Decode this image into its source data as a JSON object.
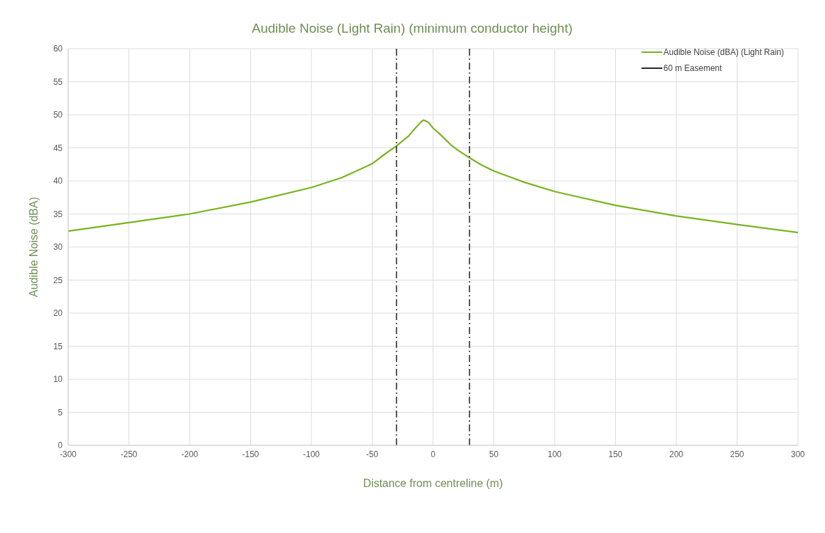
{
  "chart_data": {
    "type": "line",
    "title": "Audible Noise (Light Rain) (minimum conductor height)",
    "xlabel": "Distance from centreline (m)",
    "ylabel": "Audible Noise (dBA)",
    "x": [
      -300,
      -250,
      -200,
      -150,
      -100,
      -75,
      -50,
      -40,
      -30,
      -20,
      -15,
      -12,
      -10,
      -8,
      -5,
      -3,
      0,
      5,
      10,
      15,
      20,
      30,
      40,
      50,
      75,
      100,
      150,
      200,
      250,
      300
    ],
    "series": [
      {
        "name": "Audible Noise (dBA) (Light Rain)",
        "color": "#77b41e",
        "values": [
          32.4,
          33.7,
          35.0,
          36.8,
          39.0,
          40.5,
          42.6,
          44.0,
          45.3,
          46.8,
          47.9,
          48.5,
          48.9,
          49.2,
          49.0,
          48.7,
          48.0,
          47.2,
          46.3,
          45.4,
          44.7,
          43.5,
          42.4,
          41.5,
          39.8,
          38.4,
          36.3,
          34.7,
          33.4,
          32.2
        ]
      }
    ],
    "ref_lines": [
      {
        "axis": "x",
        "value": -30,
        "label": "60 m Easement",
        "color": "#262626",
        "line_style": "dashed"
      },
      {
        "axis": "x",
        "value": 30,
        "color": "#262626",
        "line_style": "dashed"
      }
    ],
    "xlim": [
      -300,
      300
    ],
    "xticks": [
      -300,
      -250,
      -200,
      -150,
      -100,
      -50,
      0,
      50,
      100,
      150,
      200,
      250,
      300
    ],
    "ylim": [
      0,
      60
    ],
    "yticks": [
      0,
      5,
      10,
      15,
      20,
      25,
      30,
      35,
      40,
      45,
      50,
      55,
      60
    ],
    "grid": true,
    "legend": "top right",
    "marker": "none",
    "line_style": "solid"
  }
}
